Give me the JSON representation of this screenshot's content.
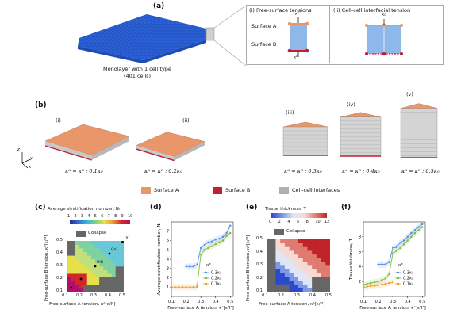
{
  "panel_labels": {
    "a": "(a)",
    "b": "(b)",
    "c": "(c)",
    "d": "(d)",
    "e": "(e)",
    "f": "(f)"
  },
  "panel_a": {
    "caption_line1": "Monolayer with 1 cell type",
    "caption_line2": "(401 cells)",
    "inset_i_title": "(i) Free-surface tensions",
    "inset_ii_title": "(ii) Cell-cell interfacial tension",
    "surface_a": "Surface A",
    "surface_b": "Surface B",
    "kappa_a": "κᴬ",
    "kappa_b": "κᴮ",
    "kappa_0": "κ₀",
    "color_blue": "#2b62d9"
  },
  "panel_b": {
    "tiles": [
      {
        "roman": "(i)",
        "eq": "κᴬ = κᴮ : 0.1κ₀"
      },
      {
        "roman": "(ii)",
        "eq": "κᴬ = κᴮ : 0.2κ₀"
      },
      {
        "roman": "(iii)",
        "eq": "κᴬ = κᴮ : 0.3κ₀"
      },
      {
        "roman": "(iv)",
        "eq": "κᴬ = κᴮ : 0.4κ₀"
      },
      {
        "roman": "(v)",
        "eq": "κᴬ = κᴮ : 0.5κ₀"
      }
    ],
    "legend": [
      {
        "label": "Surface A",
        "color": "#e8966a"
      },
      {
        "label": "Surface B",
        "color": "#c01f36"
      },
      {
        "label": "Cell-cell interfaces",
        "color": "#b0b0b0"
      }
    ],
    "axes": {
      "z": "z",
      "y": "y",
      "x": "x"
    }
  },
  "panel_c": {
    "cbar_title": "Average stratification number, Nₗ",
    "cbar_ticks": [
      "1",
      "2",
      "3",
      "4",
      "5",
      "6",
      "7",
      "8",
      "9",
      "10"
    ],
    "collapse": "Collapse",
    "xlabel": "Free-surface A tension, κᴬ[ε/l²]",
    "ylabel": "Free-surface B tension, κᴮ[ε/l²]",
    "xticks": [
      "0.1",
      "0.2",
      "0.3",
      "0.4",
      "0.5"
    ],
    "yticks": [
      "0.1",
      "0.2",
      "0.3",
      "0.4",
      "0.5"
    ],
    "markers": [
      "(i)",
      "(ii)",
      "(iii)",
      "(iv)",
      "(v)"
    ]
  },
  "panel_e": {
    "cbar_title": "Tissue thickness, T",
    "cbar_ticks": [
      "0",
      "2",
      "4",
      "6",
      "8",
      "10",
      "12"
    ],
    "collapse": "Collapse",
    "xlabel": "Free-surface A tension, κᴬ[ε/l²]",
    "ylabel": "Free-surface B tension, κᴮ[ε/l²]",
    "xticks": [
      "0.1",
      "0.2",
      "0.3",
      "0.4",
      "0.5"
    ],
    "yticks": [
      "0.1",
      "0.2",
      "0.3",
      "0.4",
      "0.5"
    ]
  },
  "chart_data": [
    {
      "id": "d",
      "type": "line",
      "xlabel": "Free-surface A tension, κᴬ[ε/l²]",
      "ylabel": "Average stratification number, Nₗ",
      "xlim": [
        0.1,
        0.52
      ],
      "ylim": [
        0,
        8
      ],
      "xticks": [
        "0.1",
        "0.2",
        "0.3",
        "0.4",
        "0.5"
      ],
      "yticks": [
        "1",
        "2",
        "3",
        "4",
        "5",
        "6",
        "7"
      ],
      "legend_title": "κᴮ",
      "x": [
        0.1,
        0.125,
        0.15,
        0.175,
        0.2,
        0.225,
        0.25,
        0.275,
        0.3,
        0.325,
        0.35,
        0.375,
        0.4,
        0.425,
        0.45,
        0.475,
        0.5
      ],
      "series": [
        {
          "name": "0.3κ₀",
          "color": "#4a8fe0",
          "values": [
            null,
            null,
            null,
            null,
            3.2,
            3.2,
            3.2,
            3.4,
            5.2,
            5.5,
            5.8,
            5.9,
            6.1,
            6.2,
            6.4,
            6.8,
            7.6
          ]
        },
        {
          "name": "0.2κ₀",
          "color": "#7db83a",
          "values": [
            null,
            null,
            null,
            null,
            null,
            null,
            null,
            1.1,
            4.5,
            5.0,
            5.2,
            5.4,
            5.6,
            5.8,
            6.0,
            6.5,
            6.8
          ]
        },
        {
          "name": "0.1κ₀",
          "color": "#f29b21",
          "values": [
            1.0,
            1.0,
            1.0,
            1.0,
            1.0,
            1.0,
            1.0,
            1.0,
            null,
            null,
            null,
            null,
            null,
            null,
            null,
            null,
            null
          ]
        }
      ]
    },
    {
      "id": "f",
      "type": "line",
      "xlabel": "Free-surface A tension, κᴬ[ε/l²]",
      "ylabel": "Tissue thickness, T",
      "xlim": [
        0.1,
        0.52
      ],
      "ylim": [
        0,
        10
      ],
      "xticks": [
        "0.1",
        "0.2",
        "0.3",
        "0.4",
        "0.5"
      ],
      "yticks": [
        "2",
        "4",
        "6",
        "8"
      ],
      "legend_title": "κᴮ",
      "x": [
        0.1,
        0.125,
        0.15,
        0.175,
        0.2,
        0.225,
        0.25,
        0.275,
        0.3,
        0.325,
        0.35,
        0.375,
        0.4,
        0.425,
        0.45,
        0.475,
        0.5
      ],
      "series": [
        {
          "name": "0.3κ₀",
          "color": "#4a8fe0",
          "values": [
            null,
            null,
            null,
            null,
            4.3,
            4.3,
            4.3,
            4.6,
            6.5,
            6.6,
            7.2,
            7.5,
            8.0,
            8.5,
            8.9,
            9.3,
            9.7
          ]
        },
        {
          "name": "0.2κ₀",
          "color": "#7db83a",
          "values": [
            1.6,
            1.7,
            1.8,
            1.9,
            2.0,
            2.2,
            2.4,
            3.0,
            5.8,
            6.1,
            6.5,
            7.0,
            7.5,
            8.0,
            8.5,
            8.9,
            9.3
          ]
        },
        {
          "name": "0.1κ₀",
          "color": "#f29b21",
          "values": [
            1.2,
            1.3,
            1.4,
            1.4,
            1.5,
            1.6,
            1.7,
            1.8,
            1.9,
            null,
            null,
            null,
            null,
            null,
            null,
            null,
            null
          ]
        }
      ]
    }
  ]
}
